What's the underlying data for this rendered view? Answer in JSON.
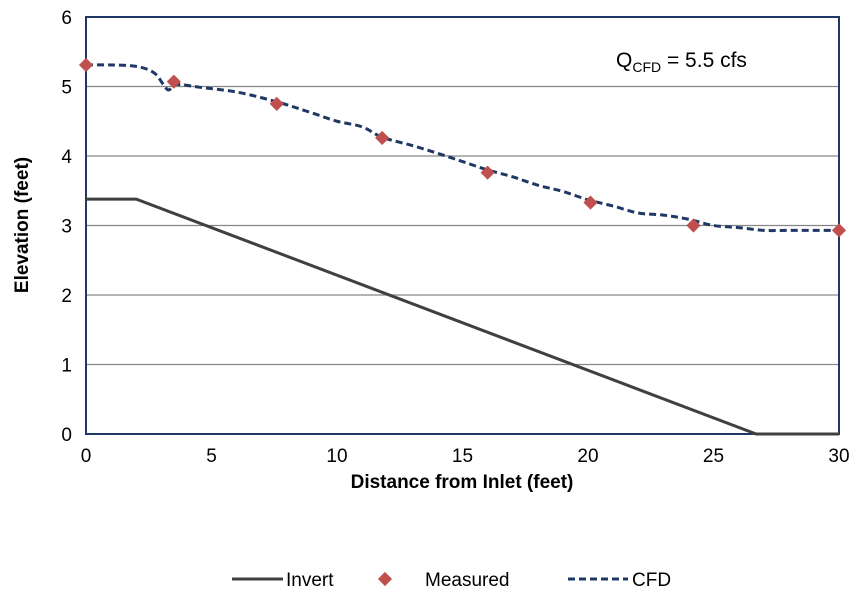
{
  "chart_data": {
    "type": "line",
    "title": "",
    "xlabel": "Distance from Inlet (feet)",
    "ylabel": "Elevation (feet)",
    "xlim": [
      0,
      30
    ],
    "ylim": [
      0,
      6
    ],
    "x_ticks": [
      "0",
      "5",
      "10",
      "15",
      "20",
      "25",
      "30"
    ],
    "y_ticks": [
      "0",
      "1",
      "2",
      "3",
      "4",
      "5",
      "6"
    ],
    "grid": "horizontal",
    "legend_position": "bottom",
    "annotation": {
      "prefix": "Q",
      "subscript": "CFD",
      "suffix": " = 5.5 cfs"
    },
    "series": [
      {
        "name": "Invert",
        "style": "solid",
        "color": "#404040",
        "x": [
          0,
          2,
          26.7,
          30
        ],
        "y": [
          3.38,
          3.38,
          0,
          0
        ]
      },
      {
        "name": "Measured",
        "style": "marker",
        "color": "#c0504d",
        "x": [
          0,
          3.5,
          7.6,
          11.8,
          16.0,
          20.1,
          24.2,
          30
        ],
        "y": [
          5.31,
          5.07,
          4.75,
          4.26,
          3.76,
          3.33,
          3.0,
          2.93
        ]
      },
      {
        "name": "CFD",
        "style": "dashed",
        "color": "#1f3864",
        "x": [
          0,
          1,
          2,
          2.7,
          3.1,
          3.3,
          3.6,
          4.5,
          6,
          7.6,
          9,
          10,
          11,
          11.8,
          13,
          14,
          15,
          16,
          17,
          18,
          19,
          20,
          21,
          22,
          23,
          24,
          25,
          26,
          27,
          28,
          29,
          30
        ],
        "y": [
          5.31,
          5.31,
          5.29,
          5.2,
          5.02,
          4.95,
          5.03,
          4.99,
          4.92,
          4.78,
          4.62,
          4.5,
          4.42,
          4.27,
          4.15,
          4.04,
          3.92,
          3.8,
          3.7,
          3.58,
          3.49,
          3.37,
          3.28,
          3.18,
          3.15,
          3.09,
          3.0,
          2.97,
          2.93,
          2.93,
          2.93,
          2.93
        ]
      }
    ]
  }
}
